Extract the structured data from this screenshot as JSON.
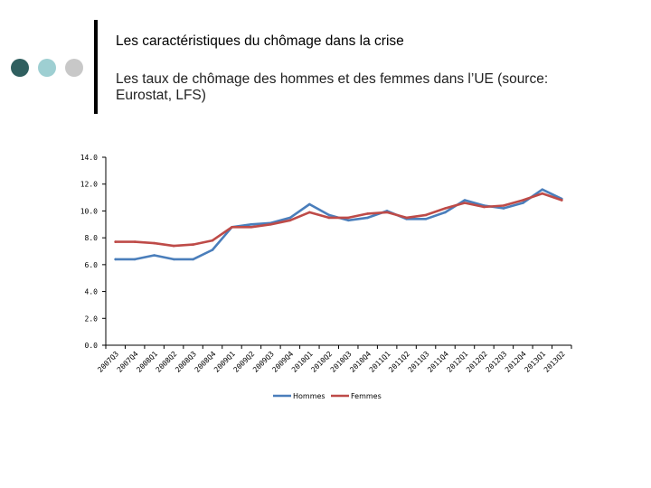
{
  "slide": {
    "title": "Les caractéristiques du chômage dans la crise",
    "subtitle": "Les taux de chômage des hommes et des femmes dans l’UE (source: Eurostat, LFS)",
    "accent_colors": [
      "#2f5f5f",
      "#9ecfd2",
      "#c8c8c8"
    ]
  },
  "chart_data": {
    "type": "line",
    "title": "",
    "xlabel": "",
    "ylabel": "",
    "ylim": [
      0,
      14
    ],
    "yticks": [
      "0.0",
      "2.0",
      "4.0",
      "6.0",
      "8.0",
      "10.0",
      "12.0",
      "14.0"
    ],
    "grid": false,
    "legend_position": "bottom",
    "categories": [
      "2007Q3",
      "2007Q4",
      "2008Q1",
      "2008Q2",
      "2008Q3",
      "2008Q4",
      "2009Q1",
      "2009Q2",
      "2009Q3",
      "2009Q4",
      "2010Q1",
      "2010Q2",
      "2010Q3",
      "2010Q4",
      "2011Q1",
      "2011Q2",
      "2011Q3",
      "2011Q4",
      "2012Q1",
      "2012Q2",
      "2012Q3",
      "2012Q4",
      "2013Q1",
      "2013Q2"
    ],
    "series": [
      {
        "name": "Hommes",
        "color": "#4a7ebb",
        "values": [
          6.4,
          6.4,
          6.7,
          6.4,
          6.4,
          7.1,
          8.8,
          9.0,
          9.1,
          9.5,
          10.5,
          9.7,
          9.3,
          9.5,
          10.0,
          9.4,
          9.4,
          9.9,
          10.8,
          10.4,
          10.2,
          10.6,
          11.6,
          10.9
        ]
      },
      {
        "name": "Femmes",
        "color": "#be4b48",
        "values": [
          7.7,
          7.7,
          7.6,
          7.4,
          7.5,
          7.8,
          8.8,
          8.8,
          9.0,
          9.3,
          9.9,
          9.5,
          9.5,
          9.8,
          9.9,
          9.5,
          9.7,
          10.2,
          10.6,
          10.3,
          10.4,
          10.8,
          11.3,
          10.8
        ]
      }
    ]
  }
}
